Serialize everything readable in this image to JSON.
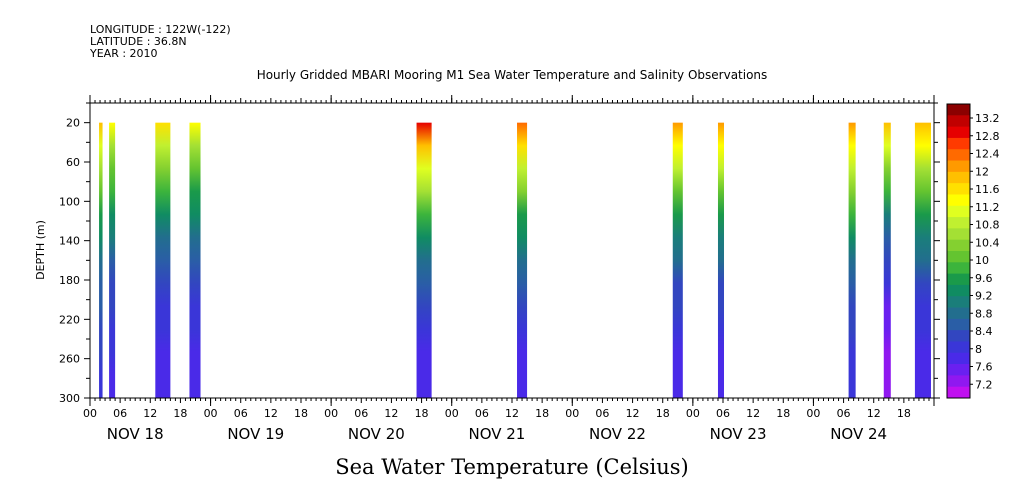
{
  "header": {
    "longitude": "LONGITUDE : 122W(-122)",
    "latitude": "LATITUDE : 36.8N",
    "year": "YEAR : 2010"
  },
  "chart_data": {
    "type": "heatmap",
    "title": "Hourly Gridded MBARI Mooring M1 Sea Water Temperature and Salinity Observations",
    "caption": "Sea Water Temperature (Celsius)",
    "ylabel": "DEPTH (m)",
    "y_direction": "inverted",
    "ylim": [
      300,
      0
    ],
    "yticks": [
      20,
      60,
      100,
      140,
      180,
      220,
      260,
      300
    ],
    "xlim_hours": [
      0,
      168
    ],
    "xtick_hour_labels": [
      "00",
      "06",
      "12",
      "18",
      "00",
      "06",
      "12",
      "18",
      "00",
      "06",
      "12",
      "18",
      "00",
      "06",
      "12",
      "18",
      "00",
      "06",
      "12",
      "18",
      "00",
      "06",
      "12",
      "18",
      "00",
      "06",
      "12",
      "18"
    ],
    "day_labels": [
      "NOV 18",
      "NOV 19",
      "NOV 20",
      "NOV 21",
      "NOV 22",
      "NOV 23",
      "NOV 24"
    ],
    "colorbar": {
      "ticks": [
        "13.2",
        "12.8",
        "12.4",
        "12",
        "11.6",
        "11.2",
        "10.8",
        "10.4",
        "10",
        "9.6",
        "9.2",
        "8.8",
        "8.4",
        "8",
        "7.6",
        "7.2"
      ],
      "colors": [
        "#8b0000",
        "#c00000",
        "#e60000",
        "#ff3a00",
        "#ff6a00",
        "#ff9a00",
        "#ffc000",
        "#ffe000",
        "#ffff00",
        "#e0ff20",
        "#c0f030",
        "#a4e034",
        "#84d030",
        "#64c430",
        "#3cb43c",
        "#1a9a4a",
        "#108c62",
        "#1a7e7a",
        "#226e8e",
        "#2a5ea6",
        "#3246c0",
        "#3a36d8",
        "#4a2ae8",
        "#6a20f0",
        "#9018f0",
        "#c010f0"
      ]
    },
    "columns": [
      {
        "day": 0,
        "start_hour": 1.8,
        "end_hour": 2.5,
        "surface_temp": 11.6,
        "bottom_temp": 8.3,
        "top_depth": 20,
        "bottom_depth": 300
      },
      {
        "day": 0,
        "start_hour": 3.8,
        "end_hour": 5.0,
        "surface_temp": 11.2,
        "bottom_temp": 8.1,
        "top_depth": 20,
        "bottom_depth": 300
      },
      {
        "day": 0,
        "start_hour": 13.0,
        "end_hour": 16.0,
        "surface_temp": 11.4,
        "bottom_temp": 8.0,
        "top_depth": 20,
        "bottom_depth": 300
      },
      {
        "day": 0,
        "start_hour": 19.8,
        "end_hour": 22.0,
        "surface_temp": 11.2,
        "bottom_temp": 8.0,
        "top_depth": 20,
        "bottom_depth": 300
      },
      {
        "day": 2,
        "start_hour": 17.0,
        "end_hour": 20.0,
        "surface_temp": 12.6,
        "bottom_temp": 8.0,
        "top_depth": 20,
        "bottom_depth": 300
      },
      {
        "day": 3,
        "start_hour": 13.0,
        "end_hour": 15.0,
        "surface_temp": 12.2,
        "bottom_temp": 8.0,
        "top_depth": 20,
        "bottom_depth": 300
      },
      {
        "day": 4,
        "start_hour": 20.0,
        "end_hour": 22.0,
        "surface_temp": 12.0,
        "bottom_temp": 8.0,
        "top_depth": 20,
        "bottom_depth": 300
      },
      {
        "day": 5,
        "start_hour": 5.0,
        "end_hour": 6.2,
        "surface_temp": 12.0,
        "bottom_temp": 8.0,
        "top_depth": 20,
        "bottom_depth": 300
      },
      {
        "day": 6,
        "start_hour": 7.0,
        "end_hour": 8.4,
        "surface_temp": 12.0,
        "bottom_temp": 8.2,
        "top_depth": 20,
        "bottom_depth": 300
      },
      {
        "day": 6,
        "start_hour": 14.0,
        "end_hour": 15.4,
        "surface_temp": 11.8,
        "bottom_temp": 7.5,
        "top_depth": 20,
        "bottom_depth": 300
      },
      {
        "day": 6,
        "start_hour": 20.2,
        "end_hour": 23.4,
        "surface_temp": 11.8,
        "bottom_temp": 8.0,
        "top_depth": 20,
        "bottom_depth": 300
      }
    ]
  }
}
